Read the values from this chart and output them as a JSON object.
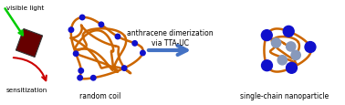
{
  "bg_color": "#ffffff",
  "text_visible_light": "visible light",
  "text_sensitization": "sensitization",
  "text_random_coil": "random coil",
  "text_anthracene": "anthracene dimerization\nvia TTA-UC",
  "text_nanoparticle": "single-chain nanoparticle",
  "arrow_blue": "#4472C4",
  "arrow_red": "#CC0000",
  "arrow_green": "#00CC00",
  "sensitizer_color": "#660000",
  "chain_color": "#CC6600",
  "chain_lw": 1.8,
  "dot_blue": "#1010CC",
  "dot_gray": "#8899BB",
  "fig_width": 3.78,
  "fig_height": 1.16,
  "xlim": [
    0,
    3.78
  ],
  "ylim": [
    0,
    1.16
  ]
}
